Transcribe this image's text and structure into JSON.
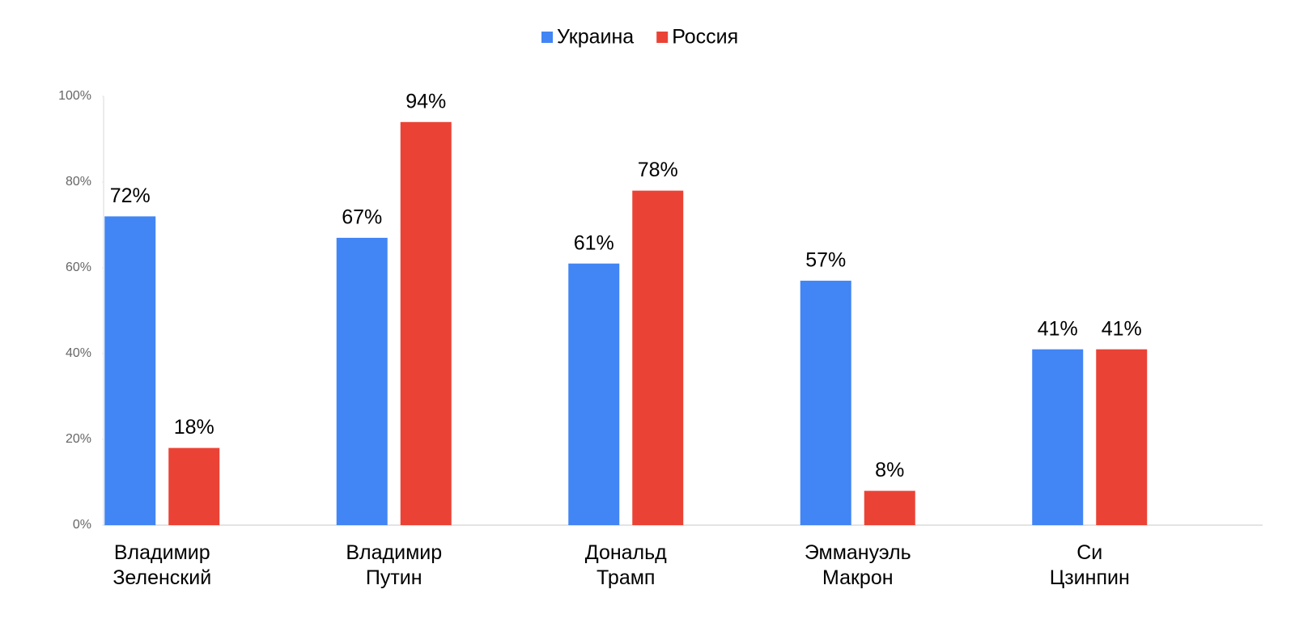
{
  "chart_data": {
    "type": "bar",
    "categories": [
      "Владимир Зеленский",
      "Владимир Путин",
      "Дональд Трамп",
      "Эммануэль Макрон",
      "Си Цзинпин"
    ],
    "series": [
      {
        "name": "Украина",
        "color": "#4285f4",
        "values": [
          72,
          67,
          61,
          57,
          41
        ],
        "value_labels": [
          "72%",
          "67%",
          "61%",
          "57%",
          "41%"
        ]
      },
      {
        "name": "Россия",
        "color": "#ea4335",
        "values": [
          18,
          94,
          78,
          8,
          41
        ],
        "value_labels": [
          "18%",
          "94%",
          "78%",
          "8%",
          "41%"
        ]
      }
    ],
    "ylim": [
      0,
      100
    ],
    "yticks": [
      {
        "value": 0,
        "label": "0%"
      },
      {
        "value": 20,
        "label": "20%"
      },
      {
        "value": 40,
        "label": "40%"
      },
      {
        "value": 60,
        "label": "60%"
      },
      {
        "value": 80,
        "label": "80%"
      },
      {
        "value": 100,
        "label": "100%"
      }
    ],
    "grid": false,
    "legend": "top"
  }
}
